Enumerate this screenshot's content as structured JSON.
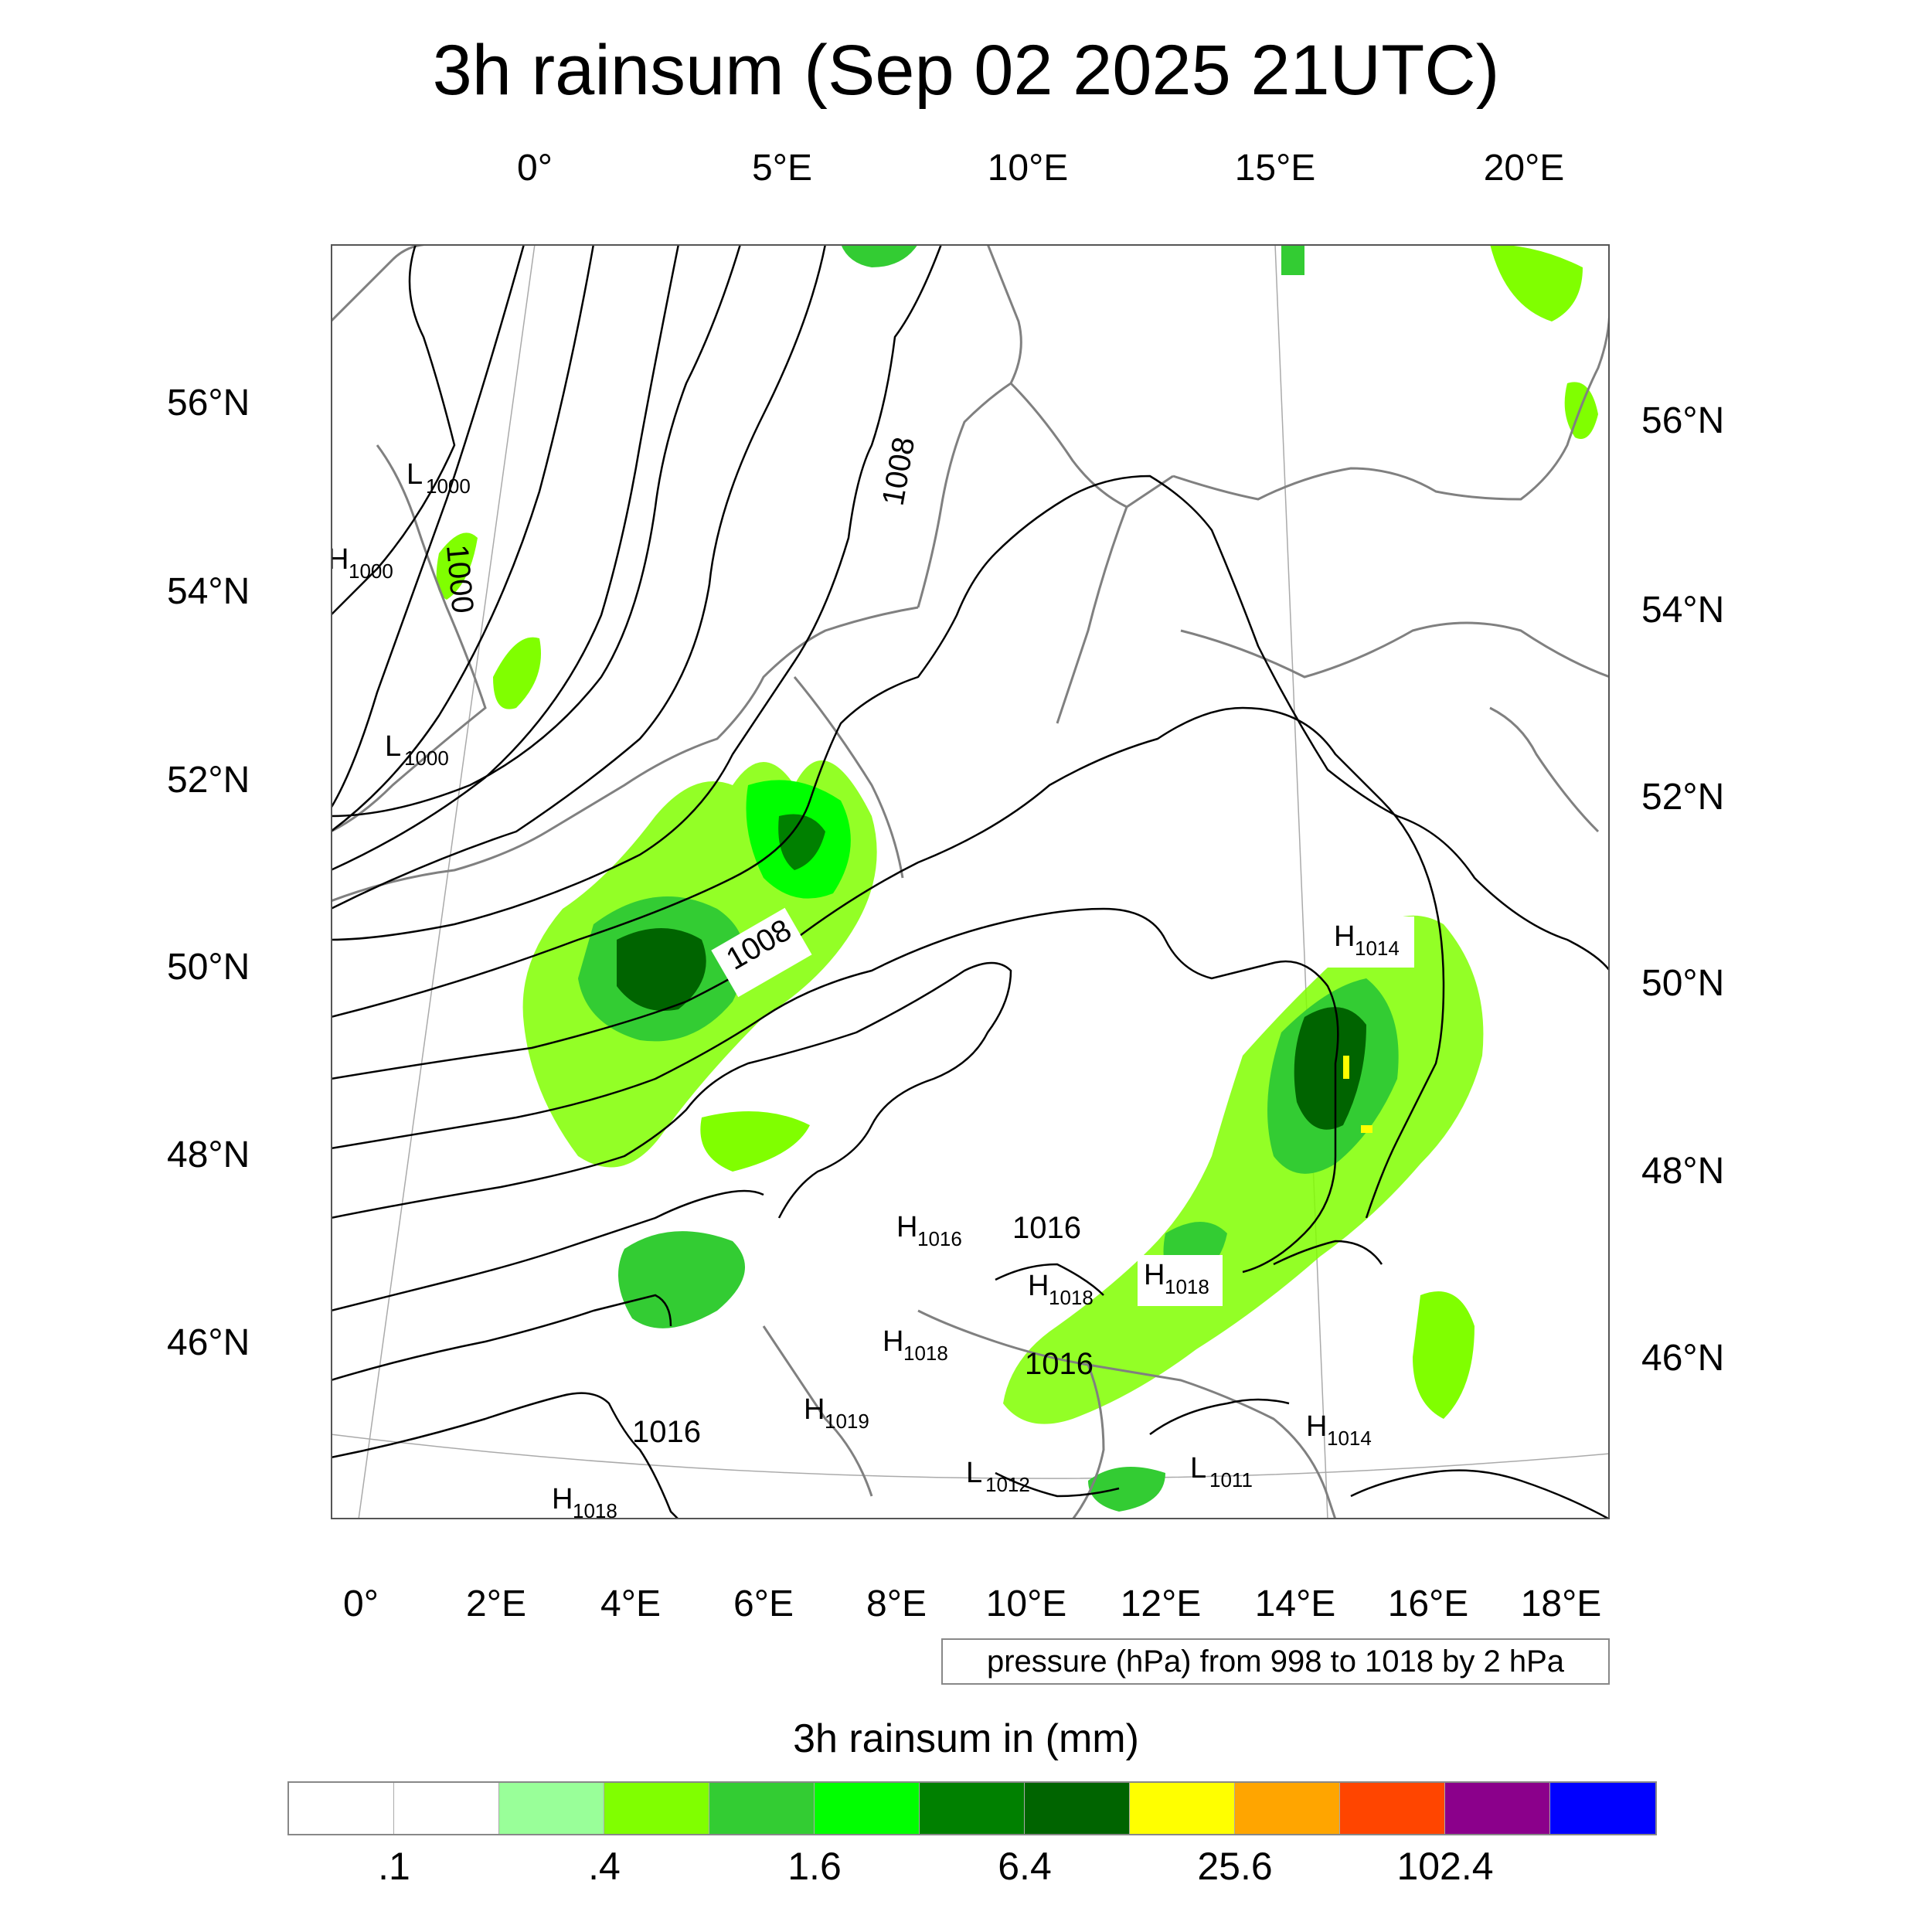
{
  "title": "3h rainsum (Sep 02 2025 21UTC)",
  "top_lon_labels": [
    "0°",
    "5°E",
    "10°E",
    "15°E",
    "20°E"
  ],
  "bottom_lon_labels": [
    "0°",
    "2°E",
    "4°E",
    "6°E",
    "8°E",
    "10°E",
    "12°E",
    "14°E",
    "16°E",
    "18°E"
  ],
  "left_lat_labels": [
    "56°N",
    "54°N",
    "52°N",
    "50°N",
    "48°N",
    "46°N"
  ],
  "right_lat_labels": [
    "56°N",
    "54°N",
    "52°N",
    "50°N",
    "48°N",
    "46°N"
  ],
  "contour_labels": {
    "c1000": "1000",
    "c1008a": "1008",
    "c1008b": "1008",
    "c1016a": "1016",
    "c1016b": "1016",
    "c1016c": "1016"
  },
  "pressure_centers": [
    {
      "letter": "L",
      "value": "1000"
    },
    {
      "letter": "H",
      "value": "1000"
    },
    {
      "letter": "L",
      "value": "1000"
    },
    {
      "letter": "H",
      "value": "1014"
    },
    {
      "letter": "H",
      "value": "1016"
    },
    {
      "letter": "H",
      "value": "1018"
    },
    {
      "letter": "H",
      "value": "1018"
    },
    {
      "letter": "H",
      "value": "1018"
    },
    {
      "letter": "H",
      "value": "1019"
    },
    {
      "letter": "H",
      "value": "1014"
    },
    {
      "letter": "L",
      "value": "1012"
    },
    {
      "letter": "L",
      "value": "1011"
    },
    {
      "letter": "H",
      "value": "1018"
    }
  ],
  "pressure_note": "pressure (hPa) from 998 to 1018 by 2 hPa",
  "colorbar": {
    "title": "3h rainsum in (mm)",
    "colors": [
      "#ffffff",
      "#ffffff",
      "#99ff99",
      "#80ff00",
      "#33cc33",
      "#00ff00",
      "#008000",
      "#006400",
      "#ffff00",
      "#ffa500",
      "#ff4500",
      "#8b008b",
      "#0000ff"
    ],
    "labels": [
      ".1",
      ".4",
      "1.6",
      "6.4",
      "25.6",
      "102.4"
    ]
  },
  "colors": {
    "coastline": "#808080",
    "isobar": "#000000",
    "graticule": "#aaaaaa"
  }
}
